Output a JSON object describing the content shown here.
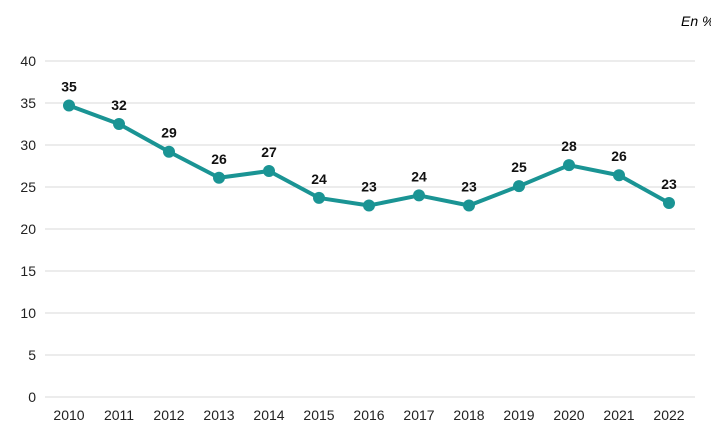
{
  "unit_label": "En %",
  "chart_data": {
    "type": "line",
    "title": "",
    "xlabel": "",
    "ylabel": "",
    "x": [
      "2010",
      "2011",
      "2012",
      "2013",
      "2014",
      "2015",
      "2016",
      "2017",
      "2018",
      "2019",
      "2020",
      "2021",
      "2022"
    ],
    "series": [
      {
        "values": [
          34.7,
          32.5,
          29.2,
          26.1,
          26.9,
          23.7,
          22.8,
          24.0,
          22.8,
          25.1,
          27.6,
          26.4,
          23.1
        ],
        "data_labels": [
          "35",
          "32",
          "29",
          "26",
          "27",
          "24",
          "23",
          "24",
          "23",
          "25",
          "28",
          "26",
          "23"
        ],
        "color": "#1A9494"
      }
    ],
    "ylim": [
      0,
      40
    ],
    "yticks": [
      0,
      5,
      10,
      15,
      20,
      25,
      30,
      35,
      40
    ],
    "grid": "horizontal",
    "gridColor": "#D9D9D9"
  }
}
